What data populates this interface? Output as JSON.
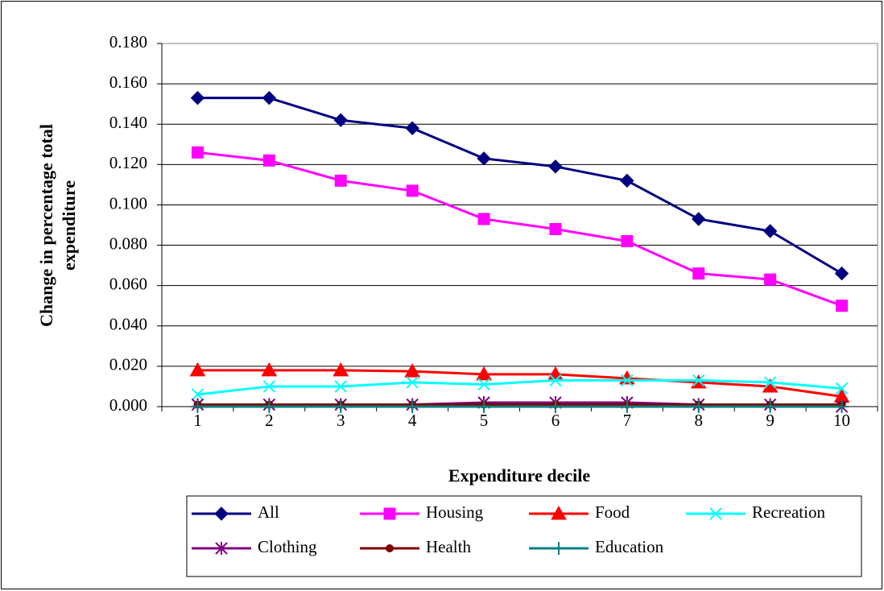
{
  "chart_data": {
    "type": "line",
    "y_label": "Change in percentage total expenditure",
    "x_label": "Expenditure decile",
    "categories": [
      "1",
      "2",
      "3",
      "4",
      "5",
      "6",
      "7",
      "8",
      "9",
      "10"
    ],
    "ylim": [
      0,
      0.18
    ],
    "yticks": [
      {
        "value": 0,
        "label": "0.000"
      },
      {
        "value": 0.02,
        "label": "0.020"
      },
      {
        "value": 0.04,
        "label": "0.040"
      },
      {
        "value": 0.06,
        "label": "0.060"
      },
      {
        "value": 0.08,
        "label": "0.080"
      },
      {
        "value": 0.1,
        "label": "0.100"
      },
      {
        "value": 0.12,
        "label": "0.120"
      },
      {
        "value": 0.14,
        "label": "0.140"
      },
      {
        "value": 0.16,
        "label": "0.160"
      },
      {
        "value": 0.18,
        "label": "0.180"
      }
    ],
    "grid": true,
    "legend": "bottom",
    "series": [
      {
        "name": "All",
        "color": "#000080",
        "marker": "diamond",
        "values": [
          0.153,
          0.153,
          0.142,
          0.138,
          0.123,
          0.119,
          0.112,
          0.093,
          0.087,
          0.066
        ]
      },
      {
        "name": "Housing",
        "color": "#FF00FF",
        "marker": "square",
        "values": [
          0.126,
          0.122,
          0.112,
          0.107,
          0.093,
          0.088,
          0.082,
          0.066,
          0.063,
          0.05
        ]
      },
      {
        "name": "Food",
        "color": "#FF0000",
        "marker": "triangle",
        "values": [
          0.018,
          0.018,
          0.018,
          0.0175,
          0.016,
          0.016,
          0.014,
          0.012,
          0.01,
          0.005
        ]
      },
      {
        "name": "Recreation",
        "color": "#00FFFF",
        "marker": "x",
        "values": [
          0.006,
          0.01,
          0.01,
          0.012,
          0.011,
          0.013,
          0.013,
          0.013,
          0.012,
          0.009
        ]
      },
      {
        "name": "Clothing",
        "color": "#800080",
        "marker": "star",
        "values": [
          0.001,
          0.001,
          0.001,
          0.001,
          0.002,
          0.002,
          0.002,
          0.001,
          0.001,
          0
        ]
      },
      {
        "name": "Health",
        "color": "#800000",
        "marker": "circle",
        "values": [
          0.001,
          0.001,
          0.001,
          0.001,
          0.001,
          0.001,
          0.001,
          0.001,
          0.001,
          0.001
        ]
      },
      {
        "name": "Education",
        "color": "#008080",
        "marker": "plus",
        "values": [
          0,
          0,
          0,
          0,
          0,
          0,
          0,
          0,
          0,
          0
        ]
      }
    ]
  }
}
